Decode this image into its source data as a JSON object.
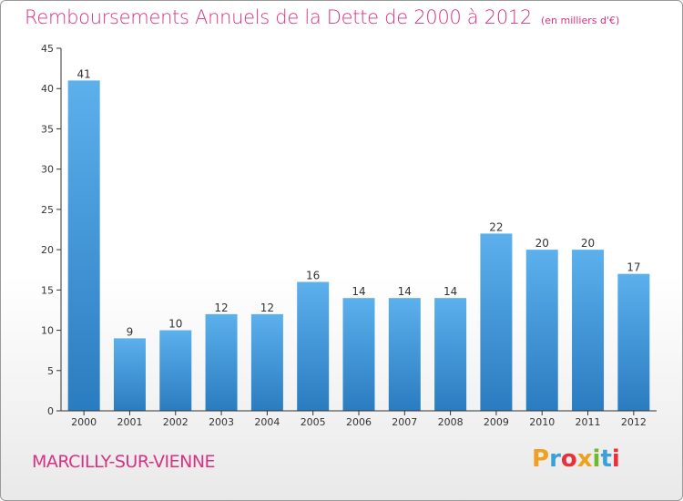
{
  "page": {
    "title": "Remboursements Annuels de la Dette de 2000 à 2012",
    "unit": "(en milliers d'€)",
    "town": "MARCILLY-SUR-VIENNE",
    "logo": {
      "letters": [
        "P",
        "r",
        "o",
        "x",
        "i",
        "t",
        "i"
      ],
      "colors": [
        "#f0a020",
        "#3aa0d8",
        "#e8303a",
        "#f0a020",
        "#70b830",
        "#3aa0d8",
        "#e8303a"
      ]
    }
  },
  "chart_data": {
    "type": "bar",
    "title": "Remboursements Annuels de la Dette de 2000 à 2012",
    "subtitle": "(en milliers d'€)",
    "xlabel": "",
    "ylabel": "",
    "categories": [
      "2000",
      "2001",
      "2002",
      "2003",
      "2004",
      "2005",
      "2006",
      "2007",
      "2008",
      "2009",
      "2010",
      "2011",
      "2012"
    ],
    "values": [
      41,
      9,
      10,
      12,
      12,
      16,
      14,
      14,
      14,
      22,
      20,
      20,
      17
    ],
    "ylim": [
      0,
      45
    ],
    "yticks": [
      0,
      5,
      10,
      15,
      20,
      25,
      30,
      35,
      40,
      45
    ],
    "grid": false,
    "bar_color": "#3a8fd6",
    "data_labels": true
  }
}
